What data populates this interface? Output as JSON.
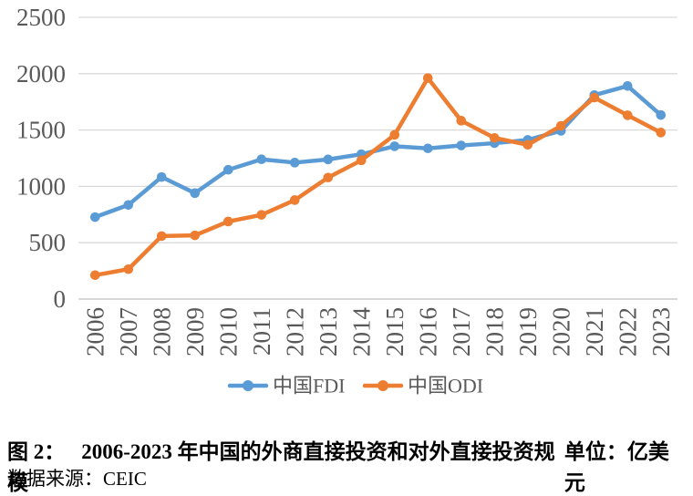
{
  "chart_data": {
    "type": "line",
    "categories": [
      "2006",
      "2007",
      "2008",
      "2009",
      "2010",
      "2011",
      "2012",
      "2013",
      "2014",
      "2015",
      "2016",
      "2017",
      "2018",
      "2019",
      "2020",
      "2021",
      "2022",
      "2023"
    ],
    "series": [
      {
        "name": "中国FDI",
        "color": "#5B9BD5",
        "values": [
          727,
          835,
          1083,
          940,
          1147,
          1240,
          1211,
          1239,
          1285,
          1356,
          1337,
          1363,
          1383,
          1412,
          1493,
          1810,
          1891,
          1633
        ]
      },
      {
        "name": "中国ODI",
        "color": "#ED7D31",
        "values": [
          212,
          265,
          559,
          565,
          688,
          747,
          878,
          1078,
          1231,
          1457,
          1961,
          1583,
          1430,
          1369,
          1537,
          1788,
          1631,
          1478
        ]
      }
    ],
    "ylim": [
      0,
      2500
    ],
    "yticks": [
      0,
      500,
      1000,
      1500,
      2000,
      2500
    ],
    "grid": true,
    "legend_position": "bottom",
    "marker": "circle",
    "xlabel": "",
    "ylabel": ""
  },
  "colors": {
    "gridline": "#D9D9D9",
    "axis_line": "#BFBFBF",
    "tick_text": "#595959",
    "legend_text": "#595959"
  },
  "caption": {
    "figure_label": "图 2：",
    "title": "2006-2023 年中国的外商直接投资和对外直接投资规模",
    "unit": "单位：亿美元"
  },
  "source": {
    "text": "数据来源：CEIC"
  }
}
